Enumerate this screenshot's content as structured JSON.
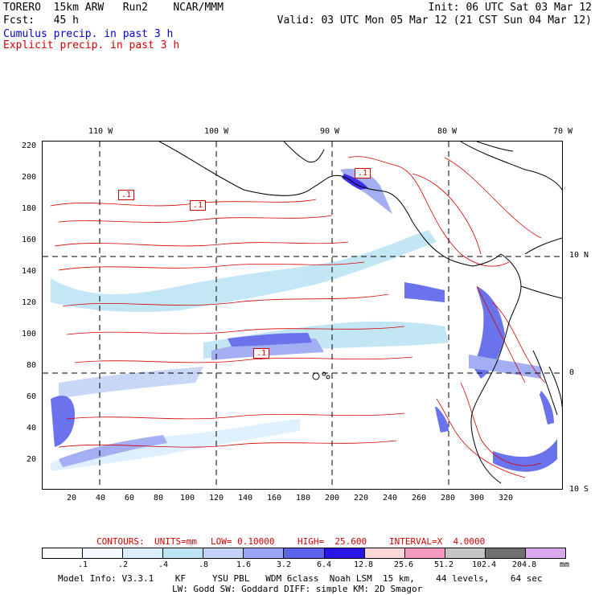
{
  "header": {
    "model": "TORERO  15km ARW   Run2    NCAR/MMM",
    "init": "Init: 06 UTC Sat 03 Mar 12",
    "fcst": "Fcst:   45 h",
    "valid": "Valid: 03 UTC Mon 05 Mar 12 (21 CST Sun 04 Mar 12)",
    "line1": "Cumulus precip. in past 3 h",
    "line2": "Explicit precip. in past 3 h"
  },
  "colors": {
    "cumulus": "#0000cc",
    "explicit": "#d40000",
    "grid": "#000000"
  },
  "map": {
    "lon_labels": [
      "110 W",
      "100 W",
      "90 W",
      "80 W",
      "70 W"
    ],
    "lat_labels": [
      "10 N",
      "0",
      "10 S"
    ],
    "x_ticks": [
      "20",
      "40",
      "60",
      "80",
      "100",
      "120",
      "140",
      "160",
      "180",
      "200",
      "220",
      "240",
      "260",
      "280",
      "300",
      "320"
    ],
    "y_ticks": [
      "220",
      "200",
      "180",
      "160",
      "140",
      "120",
      "100",
      "80",
      "60",
      "40",
      "20"
    ],
    "contour_labels": [
      ".1",
      ".1",
      ".1",
      ".1"
    ]
  },
  "contours_note": {
    "title": "CONTOURS:",
    "units": "UNITS=mm",
    "low": "LOW= 0.10000",
    "high": "HIGH=  25.600",
    "interval": "INTERVAL=X  4.0000"
  },
  "legend": {
    "values": [
      ".1",
      ".2",
      ".4",
      ".8",
      "1.6",
      "3.2",
      "6.4",
      "12.8",
      "25.6",
      "51.2",
      "102.4",
      "204.8"
    ],
    "units": "mm",
    "colors": [
      "#ffffff",
      "#f2f8ff",
      "#dbeeff",
      "#bde4f5",
      "#c4d3f7",
      "#9aa6f2",
      "#5b64ea",
      "#2a16e8",
      "#fbd8d8",
      "#f29bc0",
      "#c4c4c4",
      "#707070",
      "#dca8ee"
    ]
  },
  "footer": {
    "line1": "Model Info: V3.3.1    KF     YSU PBL   WDM 6class  Noah LSM  15 km,    44 levels,    64 sec",
    "line2": "LW: Godd SW: Goddard DIFF: simple KM: 2D Smagor"
  }
}
